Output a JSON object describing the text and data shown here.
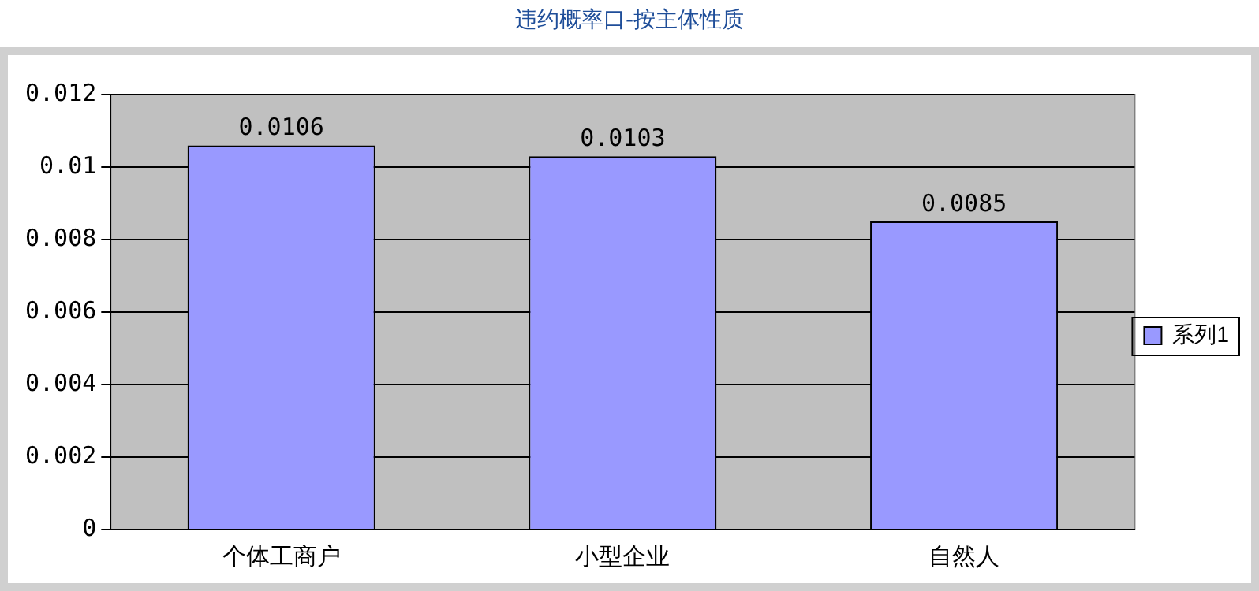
{
  "chart_data": {
    "type": "bar",
    "title": "违约概率口-按主体性质",
    "categories": [
      "个体工商户",
      "小型企业",
      "自然人"
    ],
    "series": [
      {
        "name": "系列1",
        "color": "#9999ff",
        "values": [
          0.0106,
          0.0103,
          0.0085
        ]
      }
    ],
    "ylim": [
      0,
      0.012
    ],
    "yticks": [
      0,
      0.002,
      0.004,
      0.006,
      0.008,
      0.01,
      0.012
    ],
    "grid": "y",
    "legend": "right",
    "data_labels": true
  }
}
